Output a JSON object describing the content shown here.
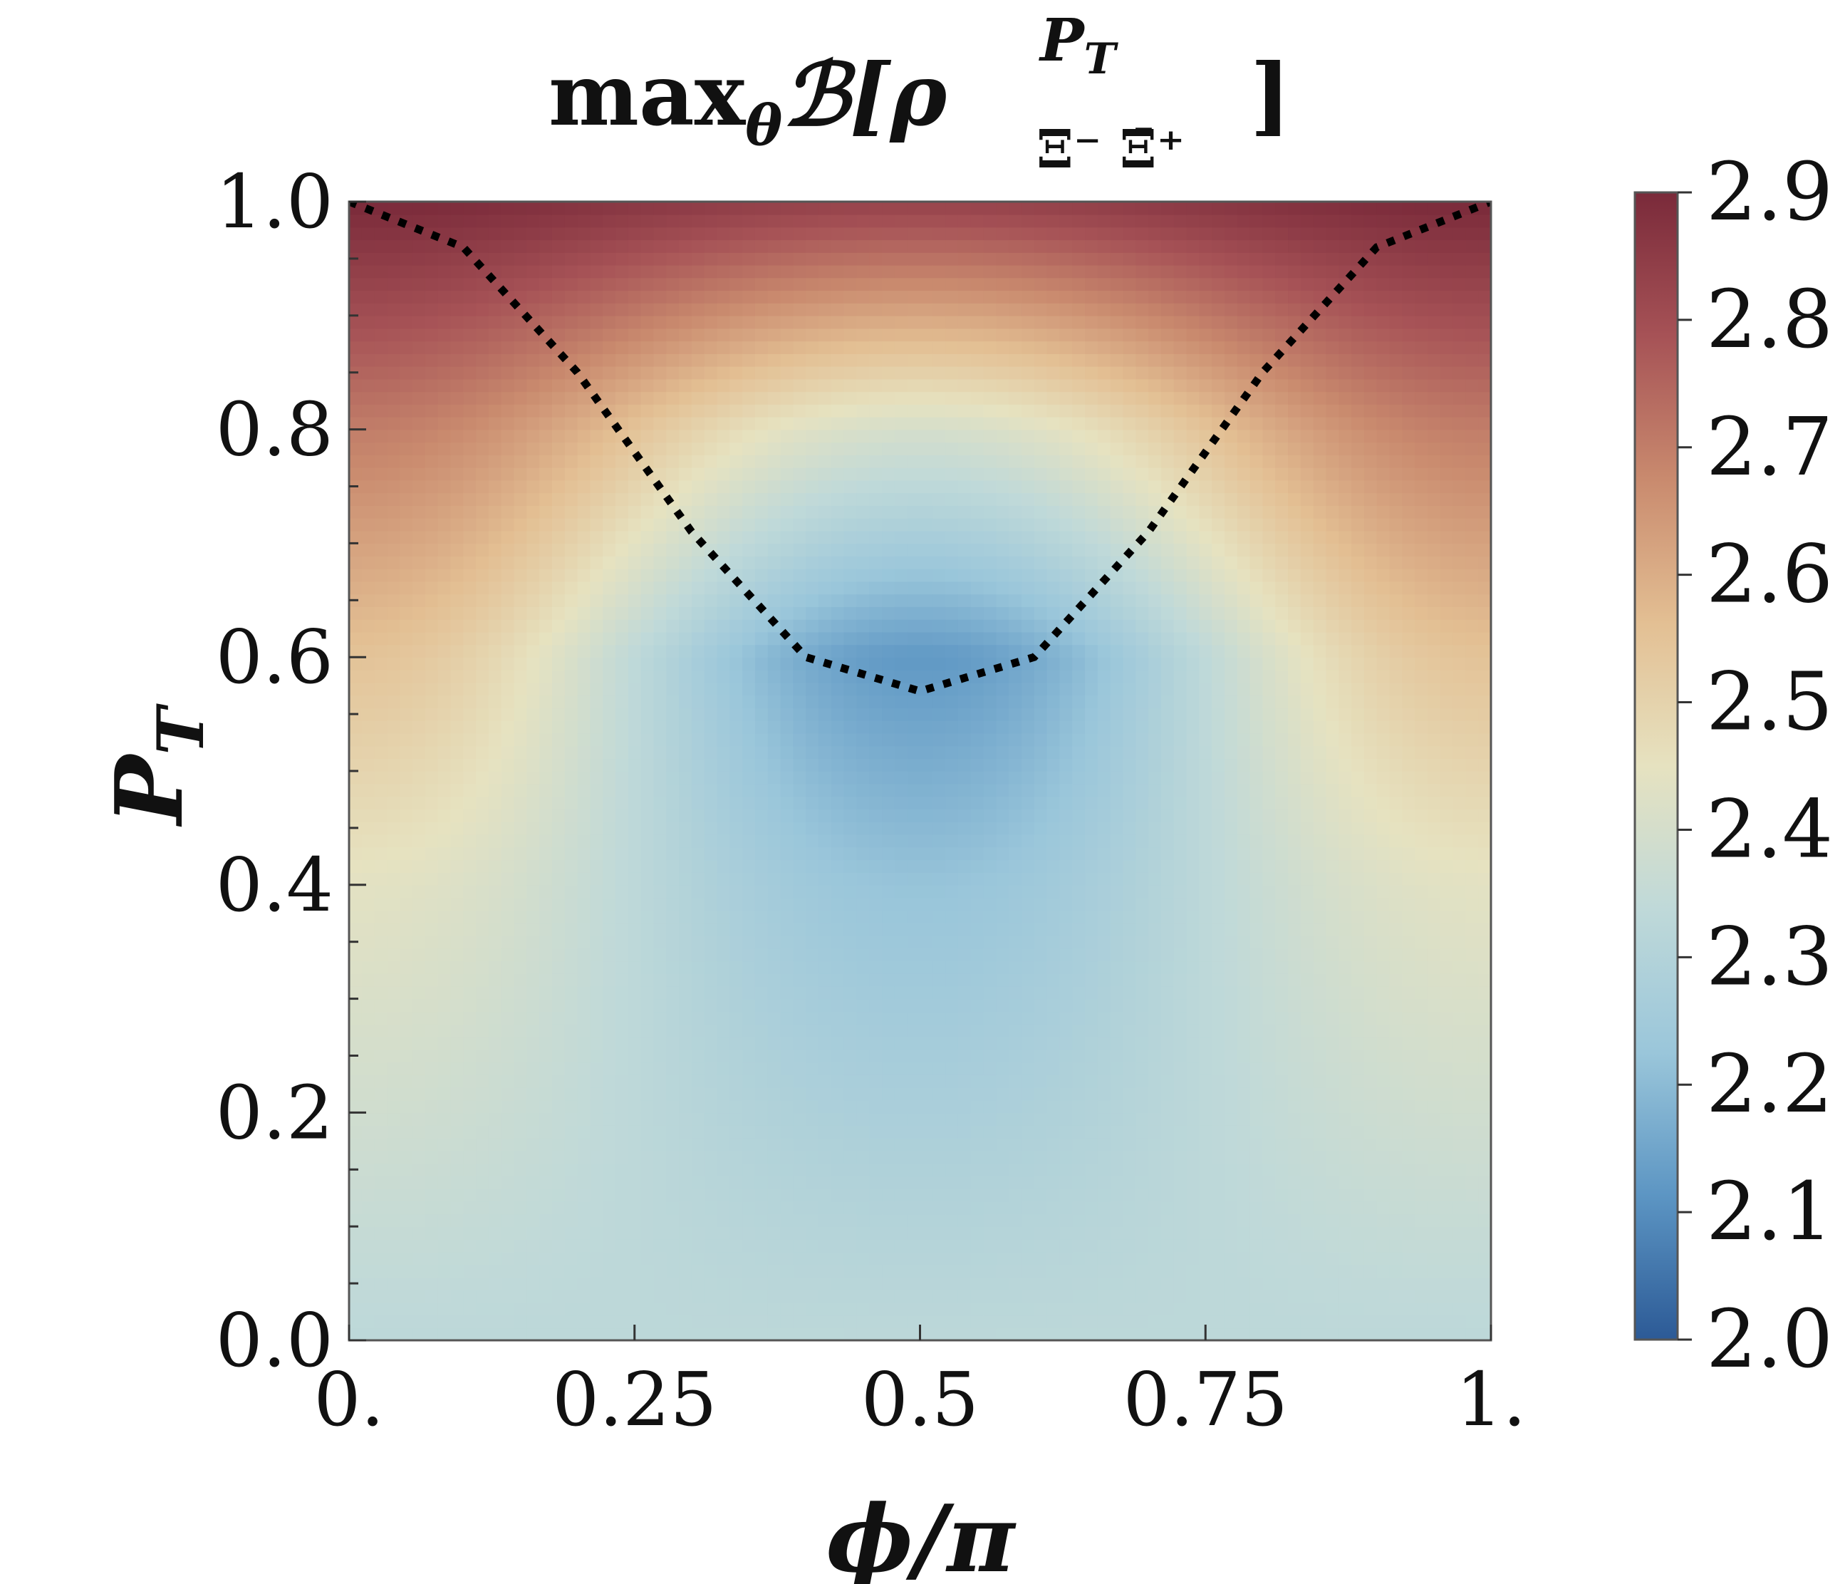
{
  "chart_data": {
    "type": "heatmap",
    "title": "maxθℬ[ρ^{P_T}_{Ξ⁻ Ξ̄⁺}]",
    "title_parts": {
      "main": "max",
      "sub_theta": "θ",
      "script_b": "ℬ[",
      "rho": "ρ",
      "sup": "P",
      "sup_sub": "T",
      "sub_pair": "Ξ⁻ Ξ̄⁺",
      "close": "]"
    },
    "xlabel": "ϕ/π",
    "ylabel": "P",
    "ylabel_sub": "T",
    "xlim": [
      0,
      1
    ],
    "ylim": [
      0,
      1
    ],
    "x_ticks": [
      0,
      0.25,
      0.5,
      0.75,
      1
    ],
    "x_tick_labels": [
      "0.",
      "0.25",
      "0.5",
      "0.75",
      "1."
    ],
    "y_ticks": [
      0,
      0.2,
      0.4,
      0.6,
      0.8,
      1.0
    ],
    "y_tick_labels": [
      "0.0",
      "0.2",
      "0.4",
      "0.6",
      "0.8",
      "1.0"
    ],
    "colorbar": {
      "range": [
        2.0,
        2.9
      ],
      "ticks": [
        2.0,
        2.1,
        2.2,
        2.3,
        2.4,
        2.5,
        2.6,
        2.7,
        2.8,
        2.9
      ],
      "tick_labels": [
        "2.0",
        "2.1",
        "2.2",
        "2.3",
        "2.4",
        "2.5",
        "2.6",
        "2.7",
        "2.8",
        "2.9"
      ],
      "colormap": "RdYlBu_r (muted)",
      "colors": [
        "#2c5a96",
        "#5c95c3",
        "#9ac6da",
        "#bfd9d9",
        "#e6e2c0",
        "#e3bf93",
        "#c98a6e",
        "#a65256",
        "#7a2a3a"
      ]
    },
    "surface_samples": [
      {
        "x": 0.0,
        "y": 0.0,
        "value": 2.33
      },
      {
        "x": 0.5,
        "y": 0.0,
        "value": 2.33
      },
      {
        "x": 0.0,
        "y": 0.4,
        "value": 2.44
      },
      {
        "x": 0.5,
        "y": 0.4,
        "value": 2.22
      },
      {
        "x": 0.0,
        "y": 0.6,
        "value": 2.55
      },
      {
        "x": 0.5,
        "y": 0.6,
        "value": 2.12
      },
      {
        "x": 0.0,
        "y": 0.8,
        "value": 2.7
      },
      {
        "x": 0.5,
        "y": 0.8,
        "value": 2.4
      },
      {
        "x": 0.0,
        "y": 1.0,
        "value": 2.9
      },
      {
        "x": 0.5,
        "y": 1.0,
        "value": 2.83
      }
    ],
    "boundary_curve": {
      "style": "dotted",
      "color": "#000000",
      "points": [
        {
          "x": 0.0,
          "y": 1.0
        },
        {
          "x": 0.1,
          "y": 0.96
        },
        {
          "x": 0.2,
          "y": 0.85
        },
        {
          "x": 0.3,
          "y": 0.71
        },
        {
          "x": 0.4,
          "y": 0.6
        },
        {
          "x": 0.5,
          "y": 0.57
        },
        {
          "x": 0.6,
          "y": 0.6
        },
        {
          "x": 0.7,
          "y": 0.71
        },
        {
          "x": 0.8,
          "y": 0.85
        },
        {
          "x": 0.9,
          "y": 0.96
        },
        {
          "x": 1.0,
          "y": 1.0
        }
      ]
    },
    "grid": false
  }
}
